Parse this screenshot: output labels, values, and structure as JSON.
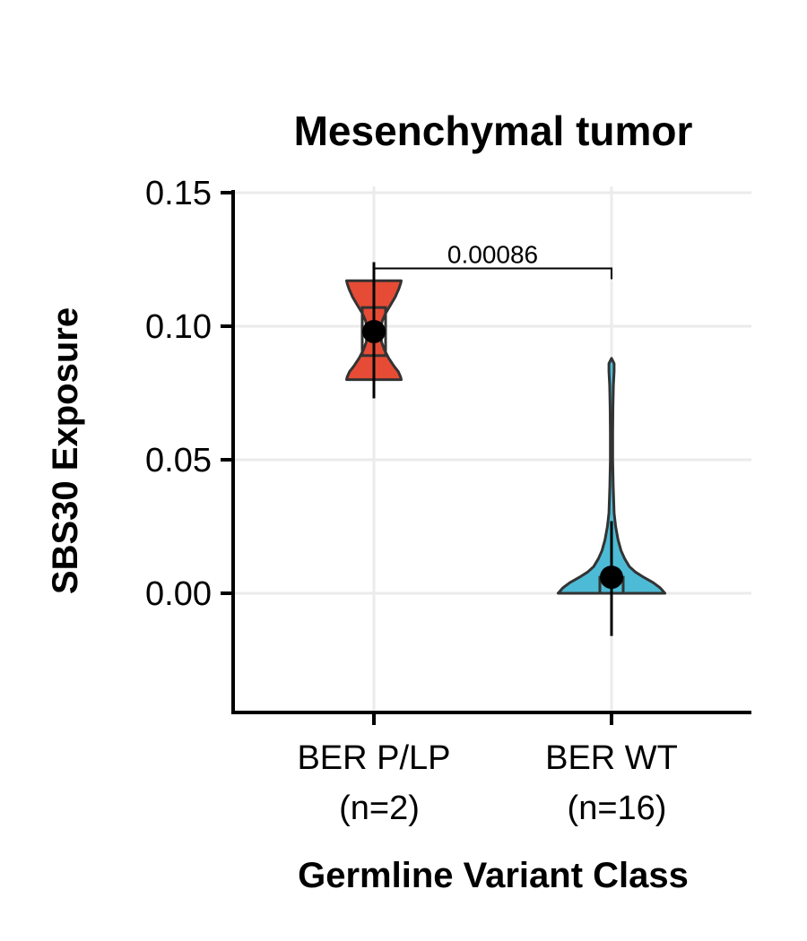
{
  "chart_data": {
    "type": "violin",
    "title": "Mesenchymal tumor",
    "xlabel": "Germline Variant Class",
    "ylabel": "SBS30 Exposure",
    "ylim": [
      -0.044,
      0.151
    ],
    "yticks": [
      "0.00",
      "0.05",
      "0.10",
      "0.15"
    ],
    "ytick_values": [
      0.0,
      0.05,
      0.1,
      0.15
    ],
    "grid": true,
    "categories": [
      {
        "label": "BER P/LP",
        "n_label": "(n=2)"
      },
      {
        "label": "BER WT",
        "n_label": "(n=16)"
      }
    ],
    "series": [
      {
        "color": "#E64B35",
        "min": 0.08,
        "max": 0.117,
        "mean": 0.098,
        "error_low": 0.073,
        "error_high": 0.124,
        "box_q1": 0.089,
        "box_q3": 0.107,
        "density": [
          [
            0.08,
            0.23
          ],
          [
            0.081,
            0.225
          ],
          [
            0.083,
            0.205
          ],
          [
            0.085,
            0.17
          ],
          [
            0.088,
            0.125
          ],
          [
            0.091,
            0.09
          ],
          [
            0.094,
            0.065
          ],
          [
            0.097,
            0.055
          ],
          [
            0.099,
            0.055
          ],
          [
            0.102,
            0.07
          ],
          [
            0.105,
            0.1
          ],
          [
            0.108,
            0.14
          ],
          [
            0.111,
            0.18
          ],
          [
            0.114,
            0.21
          ],
          [
            0.116,
            0.225
          ],
          [
            0.117,
            0.23
          ]
        ]
      },
      {
        "color": "#4DBBD5",
        "min": 0.0,
        "max": 0.088,
        "mean": 0.006,
        "error_low": -0.016,
        "error_high": 0.027,
        "box_q1": 0.0,
        "box_q3": 0.006,
        "density": [
          [
            0.0,
            0.45
          ],
          [
            0.002,
            0.41
          ],
          [
            0.004,
            0.35
          ],
          [
            0.006,
            0.27
          ],
          [
            0.008,
            0.2
          ],
          [
            0.01,
            0.15
          ],
          [
            0.013,
            0.11
          ],
          [
            0.016,
            0.08
          ],
          [
            0.02,
            0.055
          ],
          [
            0.025,
            0.035
          ],
          [
            0.03,
            0.022
          ],
          [
            0.04,
            0.014
          ],
          [
            0.05,
            0.01
          ],
          [
            0.06,
            0.01
          ],
          [
            0.07,
            0.012
          ],
          [
            0.078,
            0.016
          ],
          [
            0.083,
            0.022
          ],
          [
            0.086,
            0.022
          ],
          [
            0.088,
            0.0
          ]
        ]
      }
    ],
    "annotations": [
      {
        "type": "bracket",
        "from": 0,
        "to": 1,
        "y": 0.122,
        "label": "0.00086"
      }
    ]
  }
}
